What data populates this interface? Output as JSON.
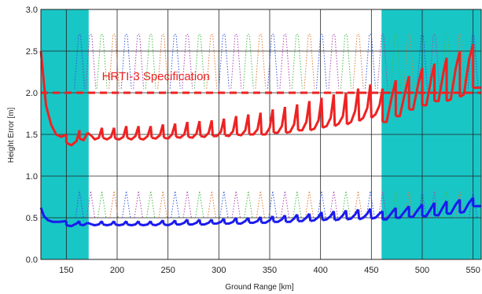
{
  "chart_data": {
    "type": "line",
    "title": "",
    "xlabel": "Ground Range [km]",
    "ylabel": "Height Error [m]",
    "xlim": [
      125,
      558
    ],
    "ylim": [
      0.0,
      3.0
    ],
    "x_ticks": [
      150,
      200,
      250,
      300,
      350,
      400,
      450,
      500,
      550
    ],
    "x_tick_labels": [
      "150",
      "200",
      "250",
      "300",
      "350",
      "400",
      "450",
      "500",
      "550"
    ],
    "y_ticks": [
      0.0,
      0.5,
      1.0,
      1.5,
      2.0,
      2.5,
      3.0
    ],
    "y_tick_labels": [
      "0.0",
      "0.5",
      "1.0",
      "1.5",
      "2.0",
      "2.5",
      "3.0"
    ],
    "grid": true,
    "shaded_regions": [
      [
        125,
        172
      ],
      [
        460,
        558
      ]
    ],
    "annotations": [
      {
        "text": "HRTI-3 Specification",
        "x": 185,
        "y": 2.2,
        "color": "#ee2222"
      }
    ],
    "hlines": [
      {
        "y": 2.0,
        "style": "dashed",
        "color": "#ee2222"
      }
    ],
    "red_segments": [
      [
        [
          125,
          2.5
        ],
        [
          130,
          1.85
        ],
        [
          135,
          1.62
        ],
        [
          140,
          1.5
        ],
        [
          145,
          1.47
        ],
        [
          150,
          1.5
        ]
      ],
      [
        [
          150,
          1.4
        ],
        [
          155,
          1.37
        ],
        [
          160,
          1.42
        ],
        [
          163,
          1.55
        ]
      ],
      [
        [
          163,
          1.45
        ],
        [
          167,
          1.43
        ],
        [
          171,
          1.52
        ]
      ],
      [
        [
          175,
          1.48
        ],
        [
          178,
          1.44
        ],
        [
          182,
          1.46
        ],
        [
          185,
          1.58
        ]
      ],
      [
        [
          186,
          1.46
        ],
        [
          190,
          1.44
        ],
        [
          194,
          1.47
        ],
        [
          197,
          1.58
        ]
      ],
      [
        [
          198,
          1.45
        ],
        [
          202,
          1.44
        ],
        [
          206,
          1.47
        ],
        [
          209,
          1.6
        ]
      ],
      [
        [
          210,
          1.46
        ],
        [
          214,
          1.44
        ],
        [
          218,
          1.48
        ],
        [
          221,
          1.6
        ]
      ],
      [
        [
          222,
          1.45
        ],
        [
          226,
          1.44
        ],
        [
          230,
          1.48
        ],
        [
          233,
          1.6
        ]
      ],
      [
        [
          234,
          1.46
        ],
        [
          238,
          1.45
        ],
        [
          242,
          1.49
        ],
        [
          245,
          1.62
        ]
      ],
      [
        [
          246,
          1.46
        ],
        [
          250,
          1.45
        ],
        [
          254,
          1.5
        ],
        [
          257,
          1.63
        ]
      ],
      [
        [
          258,
          1.47
        ],
        [
          262,
          1.46
        ],
        [
          266,
          1.5
        ],
        [
          269,
          1.65
        ]
      ],
      [
        [
          270,
          1.47
        ],
        [
          274,
          1.46
        ],
        [
          278,
          1.51
        ],
        [
          281,
          1.66
        ]
      ],
      [
        [
          282,
          1.48
        ],
        [
          286,
          1.47
        ],
        [
          290,
          1.52
        ],
        [
          293,
          1.67
        ]
      ],
      [
        [
          294,
          1.48
        ],
        [
          298,
          1.48
        ],
        [
          302,
          1.53
        ],
        [
          305,
          1.69
        ]
      ],
      [
        [
          306,
          1.49
        ],
        [
          310,
          1.48
        ],
        [
          314,
          1.54
        ],
        [
          317,
          1.72
        ]
      ],
      [
        [
          318,
          1.5
        ],
        [
          322,
          1.49
        ],
        [
          326,
          1.55
        ],
        [
          329,
          1.74
        ]
      ],
      [
        [
          330,
          1.5
        ],
        [
          334,
          1.5
        ],
        [
          338,
          1.56
        ],
        [
          341,
          1.76
        ]
      ],
      [
        [
          342,
          1.5
        ],
        [
          346,
          1.5
        ],
        [
          350,
          1.58
        ],
        [
          353,
          1.8
        ]
      ],
      [
        [
          354,
          1.52
        ],
        [
          358,
          1.52
        ],
        [
          362,
          1.6
        ],
        [
          365,
          1.83
        ]
      ],
      [
        [
          366,
          1.52
        ],
        [
          370,
          1.53
        ],
        [
          374,
          1.62
        ],
        [
          377,
          1.86
        ]
      ],
      [
        [
          378,
          1.55
        ],
        [
          382,
          1.55
        ],
        [
          386,
          1.65
        ],
        [
          389,
          1.9
        ]
      ],
      [
        [
          390,
          1.55
        ],
        [
          394,
          1.57
        ],
        [
          398,
          1.67
        ],
        [
          401,
          1.94
        ]
      ],
      [
        [
          402,
          1.58
        ],
        [
          406,
          1.6
        ],
        [
          410,
          1.7
        ],
        [
          413,
          1.98
        ]
      ],
      [
        [
          414,
          1.6
        ],
        [
          418,
          1.63
        ],
        [
          422,
          1.72
        ],
        [
          425,
          2.0
        ]
      ],
      [
        [
          426,
          1.62
        ],
        [
          430,
          1.65
        ],
        [
          434,
          1.78
        ],
        [
          437,
          2.05
        ]
      ],
      [
        [
          438,
          1.66
        ],
        [
          442,
          1.7
        ],
        [
          446,
          1.82
        ],
        [
          449,
          2.1
        ]
      ],
      [
        [
          450,
          1.7
        ],
        [
          454,
          1.74
        ],
        [
          458,
          1.85
        ],
        [
          461,
          2.05
        ]
      ],
      [
        [
          461,
          1.65
        ],
        [
          465,
          1.65
        ],
        [
          470,
          1.95
        ],
        [
          474,
          2.15
        ]
      ],
      [
        [
          474,
          1.72
        ],
        [
          478,
          1.72
        ],
        [
          483,
          2.0
        ],
        [
          487,
          2.2
        ]
      ],
      [
        [
          487,
          1.8
        ],
        [
          491,
          1.8
        ],
        [
          496,
          2.1
        ],
        [
          500,
          2.3
        ]
      ],
      [
        [
          500,
          1.85
        ],
        [
          504,
          1.85
        ],
        [
          509,
          2.18
        ],
        [
          512,
          2.35
        ]
      ],
      [
        [
          512,
          1.9
        ],
        [
          516,
          1.9
        ],
        [
          521,
          2.25
        ],
        [
          524,
          2.42
        ]
      ],
      [
        [
          524,
          1.9
        ],
        [
          528,
          1.92
        ],
        [
          533,
          2.3
        ],
        [
          537,
          2.5
        ]
      ],
      [
        [
          537,
          1.95
        ],
        [
          541,
          1.98
        ],
        [
          546,
          2.4
        ],
        [
          550,
          2.58
        ]
      ],
      [
        [
          550,
          2.06
        ],
        [
          555,
          2.06
        ],
        [
          558,
          2.06
        ]
      ]
    ],
    "blue_segments": [
      [
        [
          125,
          0.62
        ],
        [
          128,
          0.52
        ],
        [
          132,
          0.47
        ],
        [
          137,
          0.45
        ],
        [
          143,
          0.45
        ],
        [
          150,
          0.46
        ]
      ],
      [
        [
          150,
          0.41
        ],
        [
          155,
          0.4
        ],
        [
          160,
          0.43
        ],
        [
          163,
          0.46
        ]
      ],
      [
        [
          163,
          0.42
        ],
        [
          167,
          0.41
        ],
        [
          171,
          0.44
        ]
      ],
      [
        [
          175,
          0.42
        ],
        [
          178,
          0.41
        ],
        [
          182,
          0.42
        ],
        [
          185,
          0.46
        ]
      ],
      [
        [
          186,
          0.42
        ],
        [
          190,
          0.41
        ],
        [
          194,
          0.42
        ],
        [
          197,
          0.46
        ]
      ],
      [
        [
          198,
          0.42
        ],
        [
          202,
          0.41
        ],
        [
          206,
          0.42
        ],
        [
          209,
          0.46
        ]
      ],
      [
        [
          210,
          0.42
        ],
        [
          214,
          0.41
        ],
        [
          218,
          0.42
        ],
        [
          221,
          0.46
        ]
      ],
      [
        [
          222,
          0.42
        ],
        [
          226,
          0.41
        ],
        [
          230,
          0.42
        ],
        [
          233,
          0.46
        ]
      ],
      [
        [
          234,
          0.42
        ],
        [
          238,
          0.41
        ],
        [
          242,
          0.43
        ],
        [
          245,
          0.47
        ]
      ],
      [
        [
          246,
          0.42
        ],
        [
          250,
          0.41
        ],
        [
          254,
          0.43
        ],
        [
          257,
          0.47
        ]
      ],
      [
        [
          258,
          0.42
        ],
        [
          262,
          0.42
        ],
        [
          266,
          0.44
        ],
        [
          269,
          0.48
        ]
      ],
      [
        [
          270,
          0.42
        ],
        [
          274,
          0.42
        ],
        [
          278,
          0.44
        ],
        [
          281,
          0.48
        ]
      ],
      [
        [
          282,
          0.42
        ],
        [
          286,
          0.42
        ],
        [
          290,
          0.44
        ],
        [
          293,
          0.48
        ]
      ],
      [
        [
          294,
          0.43
        ],
        [
          298,
          0.43
        ],
        [
          302,
          0.45
        ],
        [
          305,
          0.49
        ]
      ],
      [
        [
          306,
          0.43
        ],
        [
          310,
          0.43
        ],
        [
          314,
          0.45
        ],
        [
          317,
          0.5
        ]
      ],
      [
        [
          318,
          0.43
        ],
        [
          322,
          0.43
        ],
        [
          326,
          0.46
        ],
        [
          329,
          0.5
        ]
      ],
      [
        [
          330,
          0.44
        ],
        [
          334,
          0.44
        ],
        [
          338,
          0.46
        ],
        [
          341,
          0.51
        ]
      ],
      [
        [
          342,
          0.44
        ],
        [
          346,
          0.44
        ],
        [
          350,
          0.47
        ],
        [
          353,
          0.52
        ]
      ],
      [
        [
          354,
          0.45
        ],
        [
          358,
          0.45
        ],
        [
          362,
          0.48
        ],
        [
          365,
          0.53
        ]
      ],
      [
        [
          366,
          0.45
        ],
        [
          370,
          0.45
        ],
        [
          374,
          0.49
        ],
        [
          377,
          0.54
        ]
      ],
      [
        [
          378,
          0.46
        ],
        [
          382,
          0.46
        ],
        [
          386,
          0.5
        ],
        [
          389,
          0.55
        ]
      ],
      [
        [
          390,
          0.46
        ],
        [
          394,
          0.47
        ],
        [
          398,
          0.51
        ],
        [
          401,
          0.57
        ]
      ],
      [
        [
          402,
          0.47
        ],
        [
          406,
          0.48
        ],
        [
          410,
          0.52
        ],
        [
          413,
          0.58
        ]
      ],
      [
        [
          414,
          0.47
        ],
        [
          418,
          0.48
        ],
        [
          422,
          0.53
        ],
        [
          425,
          0.59
        ]
      ],
      [
        [
          426,
          0.48
        ],
        [
          430,
          0.49
        ],
        [
          434,
          0.54
        ],
        [
          437,
          0.6
        ]
      ],
      [
        [
          438,
          0.48
        ],
        [
          442,
          0.5
        ],
        [
          446,
          0.55
        ],
        [
          449,
          0.61
        ]
      ],
      [
        [
          450,
          0.49
        ],
        [
          454,
          0.5
        ],
        [
          458,
          0.55
        ],
        [
          461,
          0.58
        ]
      ],
      [
        [
          461,
          0.48
        ],
        [
          465,
          0.48
        ],
        [
          470,
          0.56
        ],
        [
          474,
          0.62
        ]
      ],
      [
        [
          474,
          0.5
        ],
        [
          478,
          0.5
        ],
        [
          483,
          0.58
        ],
        [
          487,
          0.64
        ]
      ],
      [
        [
          487,
          0.51
        ],
        [
          491,
          0.51
        ],
        [
          496,
          0.6
        ],
        [
          500,
          0.66
        ]
      ],
      [
        [
          500,
          0.52
        ],
        [
          504,
          0.52
        ],
        [
          509,
          0.62
        ],
        [
          512,
          0.68
        ]
      ],
      [
        [
          512,
          0.53
        ],
        [
          516,
          0.53
        ],
        [
          521,
          0.64
        ],
        [
          524,
          0.7
        ]
      ],
      [
        [
          524,
          0.55
        ],
        [
          528,
          0.55
        ],
        [
          533,
          0.66
        ],
        [
          537,
          0.72
        ]
      ],
      [
        [
          537,
          0.56
        ],
        [
          541,
          0.57
        ],
        [
          546,
          0.68
        ],
        [
          550,
          0.74
        ]
      ],
      [
        [
          550,
          0.64
        ],
        [
          555,
          0.64
        ],
        [
          558,
          0.64
        ]
      ]
    ],
    "dotted_peaks": [
      {
        "x": 163,
        "color": "#3355dd"
      },
      {
        "x": 174,
        "color": "#aa44aa"
      },
      {
        "x": 185,
        "color": "#44bb44"
      },
      {
        "x": 197,
        "color": "#dd7733"
      },
      {
        "x": 209,
        "color": "#3355dd"
      },
      {
        "x": 221,
        "color": "#aa44aa"
      },
      {
        "x": 233,
        "color": "#44bb44"
      },
      {
        "x": 245,
        "color": "#dd7733"
      },
      {
        "x": 257,
        "color": "#3355dd"
      },
      {
        "x": 269,
        "color": "#aa44aa"
      },
      {
        "x": 281,
        "color": "#44bb44"
      },
      {
        "x": 293,
        "color": "#dd7733"
      },
      {
        "x": 305,
        "color": "#3355dd"
      },
      {
        "x": 317,
        "color": "#aa44aa"
      },
      {
        "x": 329,
        "color": "#44bb44"
      },
      {
        "x": 341,
        "color": "#dd7733"
      },
      {
        "x": 353,
        "color": "#3355dd"
      },
      {
        "x": 365,
        "color": "#aa44aa"
      },
      {
        "x": 377,
        "color": "#44bb44"
      },
      {
        "x": 389,
        "color": "#dd7733"
      },
      {
        "x": 401,
        "color": "#3355dd"
      },
      {
        "x": 413,
        "color": "#aa44aa"
      },
      {
        "x": 425,
        "color": "#44bb44"
      },
      {
        "x": 437,
        "color": "#dd7733"
      },
      {
        "x": 449,
        "color": "#3355dd"
      },
      {
        "x": 461,
        "color": "#aa44aa"
      },
      {
        "x": 474,
        "color": "#44bb44"
      },
      {
        "x": 487,
        "color": "#dd7733"
      },
      {
        "x": 500,
        "color": "#3355dd"
      },
      {
        "x": 512,
        "color": "#aa44aa"
      },
      {
        "x": 524,
        "color": "#44bb44"
      },
      {
        "x": 537,
        "color": "#dd7733"
      },
      {
        "x": 550,
        "color": "#3355dd"
      }
    ],
    "colors": {
      "shade": "#19c6c6",
      "upper_curve": "#ee2222",
      "lower_curve": "#1a1aee",
      "grid": "#222222",
      "background": "#ffffff"
    }
  }
}
